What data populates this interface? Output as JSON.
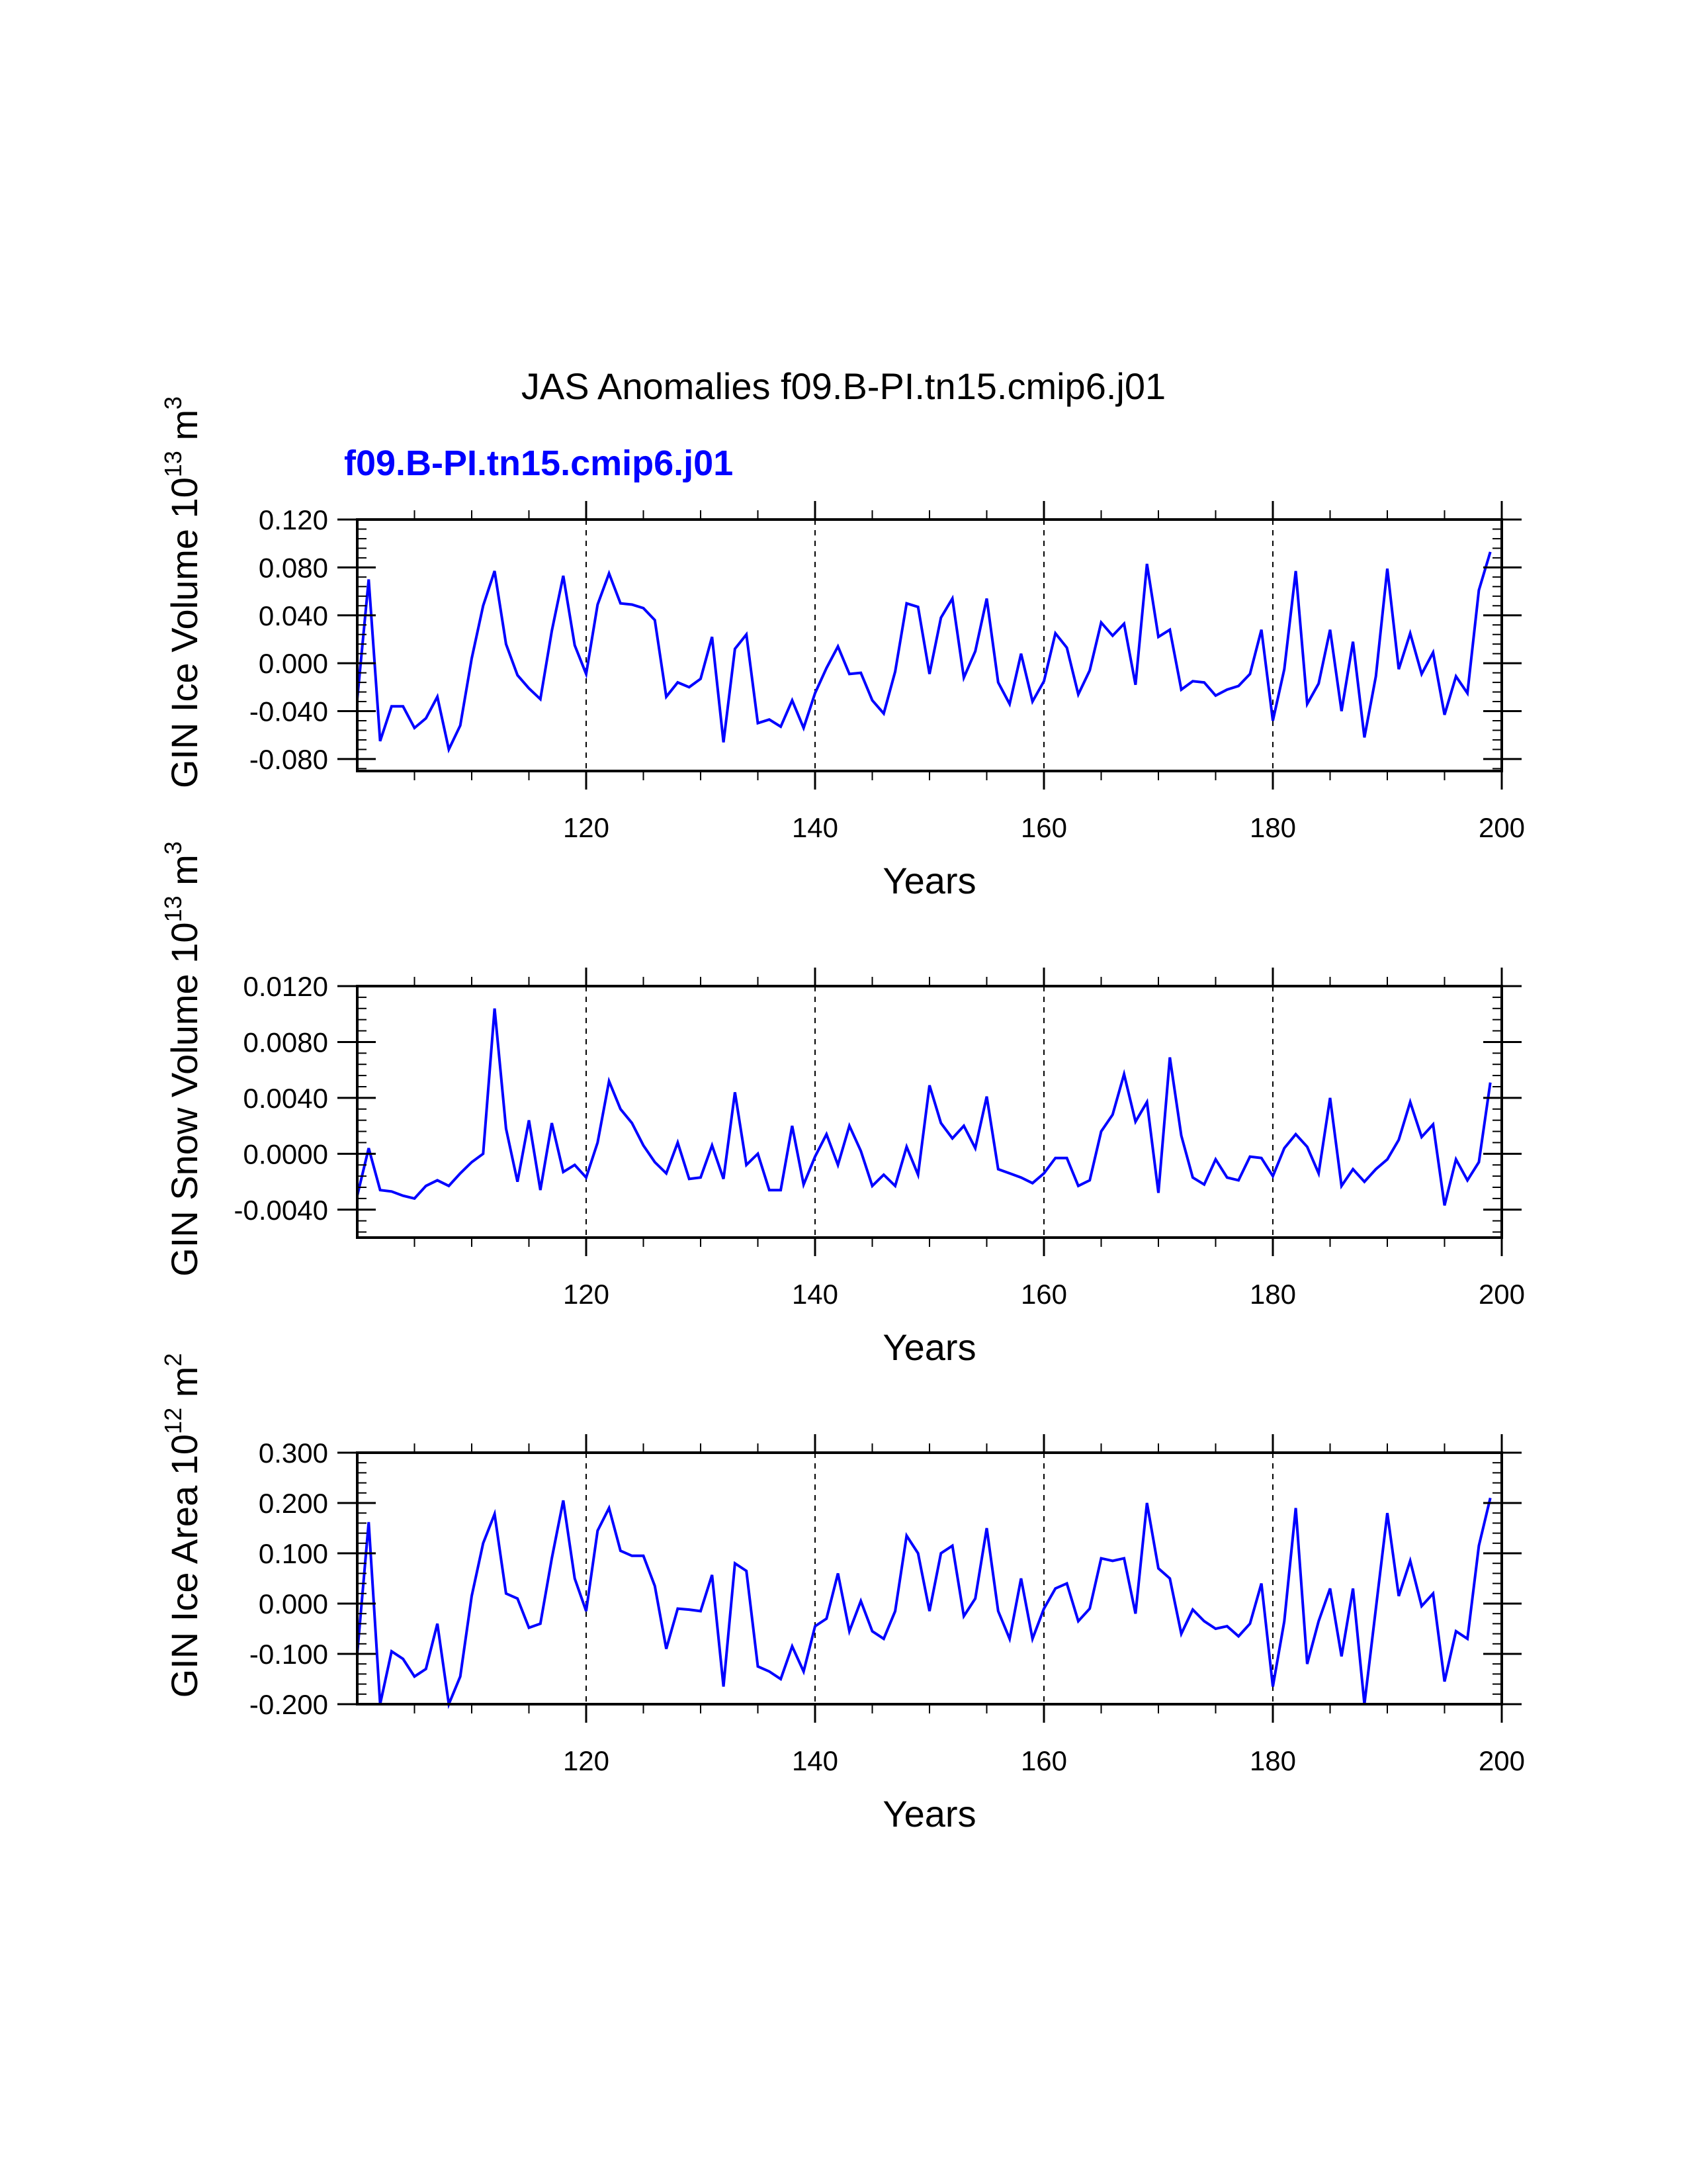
{
  "figure": {
    "title": "JAS Anomalies f09.B-PI.tn15.cmip6.j01",
    "subtitle": "f09.B-PI.tn15.cmip6.j01",
    "subtitle_color": "#0000ff",
    "line_color": "#0000ff"
  },
  "chart_data": [
    {
      "type": "line",
      "ylabel": "GIN Ice Volume 10",
      "ylabel_exp": "13",
      "ylabel_unit": " m",
      "ylabel_unit_exp": "3",
      "xlabel": "Years",
      "xlim": [
        100,
        200
      ],
      "ylim": [
        -0.09,
        0.12
      ],
      "yticks": [
        -0.08,
        -0.04,
        0.0,
        0.04,
        0.08,
        0.12
      ],
      "ytick_labels": [
        "-0.080",
        "-0.040",
        "0.000",
        "0.040",
        "0.080",
        "0.120"
      ],
      "xticks": [
        120,
        140,
        160,
        180,
        200
      ],
      "xtick_labels": [
        "120",
        "140",
        "160",
        "180",
        "200"
      ],
      "grid_x": [
        120,
        140,
        160,
        180
      ],
      "x_start": 100,
      "values": [
        -0.03,
        0.07,
        -0.065,
        -0.036,
        -0.036,
        -0.054,
        -0.046,
        -0.028,
        -0.072,
        -0.052,
        0.004,
        0.048,
        0.077,
        0.016,
        -0.01,
        -0.021,
        -0.03,
        0.027,
        0.073,
        0.015,
        -0.009,
        0.049,
        0.075,
        0.05,
        0.049,
        0.046,
        0.036,
        -0.028,
        -0.016,
        -0.02,
        -0.013,
        0.022,
        -0.066,
        0.012,
        0.024,
        -0.05,
        -0.047,
        -0.053,
        -0.031,
        -0.054,
        -0.025,
        -0.004,
        0.014,
        -0.009,
        -0.008,
        -0.031,
        -0.042,
        -0.007,
        0.05,
        0.047,
        -0.009,
        0.038,
        0.054,
        -0.012,
        0.01,
        0.054,
        -0.016,
        -0.034,
        0.008,
        -0.032,
        -0.015,
        0.025,
        0.013,
        -0.026,
        -0.006,
        0.034,
        0.023,
        0.033,
        -0.018,
        0.083,
        0.022,
        0.028,
        -0.022,
        -0.015,
        -0.016,
        -0.027,
        -0.022,
        -0.019,
        -0.009,
        0.028,
        -0.048,
        -0.005,
        0.077,
        -0.034,
        -0.017,
        0.028,
        -0.04,
        0.018,
        -0.062,
        -0.011,
        0.079,
        -0.005,
        0.025,
        -0.009,
        0.009,
        -0.043,
        -0.011,
        -0.025,
        0.061,
        0.093
      ]
    },
    {
      "type": "line",
      "ylabel": "GIN Snow Volume 10",
      "ylabel_exp": "13",
      "ylabel_unit": " m",
      "ylabel_unit_exp": "3",
      "xlabel": "Years",
      "xlim": [
        100,
        200
      ],
      "ylim": [
        -0.006,
        0.012
      ],
      "yticks": [
        -0.004,
        0.0,
        0.004,
        0.008,
        0.012
      ],
      "ytick_labels": [
        "-0.0040",
        "0.0000",
        "0.0040",
        "0.0080",
        "0.0120"
      ],
      "xticks": [
        120,
        140,
        160,
        180,
        200
      ],
      "xtick_labels": [
        "120",
        "140",
        "160",
        "180",
        "200"
      ],
      "grid_x": [
        120,
        140,
        160,
        180
      ],
      "x_start": 100,
      "values": [
        -0.003,
        0.0004,
        -0.0026,
        -0.0027,
        -0.003,
        -0.0032,
        -0.0023,
        -0.0019,
        -0.0023,
        -0.0014,
        -0.0006,
        0.0,
        0.0104,
        0.0018,
        -0.002,
        0.0024,
        -0.0026,
        0.0022,
        -0.0013,
        -0.0008,
        -0.0017,
        0.0008,
        0.0052,
        0.0032,
        0.0022,
        0.0006,
        -0.0006,
        -0.0014,
        0.0008,
        -0.0018,
        -0.0017,
        0.0006,
        -0.0018,
        0.0044,
        -0.0008,
        0.0,
        -0.0026,
        -0.0026,
        0.002,
        -0.0022,
        -0.0002,
        0.0014,
        -0.0008,
        0.002,
        0.0002,
        -0.0023,
        -0.0015,
        -0.0023,
        0.0005,
        -0.0015,
        0.0049,
        0.0022,
        0.0011,
        0.002,
        0.0004,
        0.0041,
        -0.0011,
        -0.0014,
        -0.0017,
        -0.0021,
        -0.0014,
        -0.0003,
        -0.0003,
        -0.0023,
        -0.0019,
        0.0016,
        0.0028,
        0.0057,
        0.0023,
        0.0037,
        -0.0028,
        0.0069,
        0.0013,
        -0.0017,
        -0.0022,
        -0.0004,
        -0.0017,
        -0.0019,
        -0.0002,
        -0.0003,
        -0.0016,
        0.0004,
        0.0014,
        0.0005,
        -0.0014,
        0.004,
        -0.0023,
        -0.0011,
        -0.002,
        -0.0011,
        -0.0004,
        0.001,
        0.0037,
        0.0012,
        0.0021,
        -0.0037,
        -0.0004,
        -0.0019,
        -0.0006,
        0.0051
      ]
    },
    {
      "type": "line",
      "ylabel": "GIN Ice Area 10",
      "ylabel_exp": "12",
      "ylabel_unit": " m",
      "ylabel_unit_exp": "2",
      "xlabel": "Years",
      "xlim": [
        100,
        200
      ],
      "ylim": [
        -0.2,
        0.3
      ],
      "yticks": [
        -0.2,
        -0.1,
        0.0,
        0.1,
        0.2,
        0.3
      ],
      "ytick_labels": [
        "-0.200",
        "-0.100",
        "0.000",
        "0.100",
        "0.200",
        "0.300"
      ],
      "xticks": [
        120,
        140,
        160,
        180,
        200
      ],
      "xtick_labels": [
        "120",
        "140",
        "160",
        "180",
        "200"
      ],
      "grid_x": [
        120,
        140,
        160,
        180
      ],
      "x_start": 100,
      "values": [
        -0.1,
        0.162,
        -0.2,
        -0.095,
        -0.11,
        -0.145,
        -0.13,
        -0.04,
        -0.2,
        -0.145,
        0.015,
        0.12,
        0.178,
        0.02,
        0.01,
        -0.048,
        -0.04,
        0.09,
        0.205,
        0.05,
        -0.015,
        0.145,
        0.19,
        0.105,
        0.095,
        0.095,
        0.035,
        -0.09,
        -0.01,
        -0.012,
        -0.015,
        0.057,
        -0.165,
        0.08,
        0.065,
        -0.125,
        -0.135,
        -0.15,
        -0.085,
        -0.135,
        -0.045,
        -0.03,
        0.06,
        -0.055,
        0.005,
        -0.055,
        -0.07,
        -0.015,
        0.135,
        0.1,
        -0.015,
        0.1,
        0.115,
        -0.025,
        0.01,
        0.15,
        -0.015,
        -0.07,
        0.05,
        -0.07,
        -0.01,
        0.03,
        0.04,
        -0.035,
        -0.01,
        0.09,
        0.085,
        0.09,
        -0.02,
        0.2,
        0.07,
        0.05,
        -0.06,
        -0.012,
        -0.035,
        -0.05,
        -0.045,
        -0.065,
        -0.04,
        0.04,
        -0.165,
        -0.035,
        0.19,
        -0.12,
        -0.035,
        0.03,
        -0.105,
        0.03,
        -0.2,
        -0.01,
        0.18,
        0.015,
        0.085,
        -0.005,
        0.02,
        -0.155,
        -0.055,
        -0.07,
        0.115,
        0.21
      ]
    }
  ]
}
